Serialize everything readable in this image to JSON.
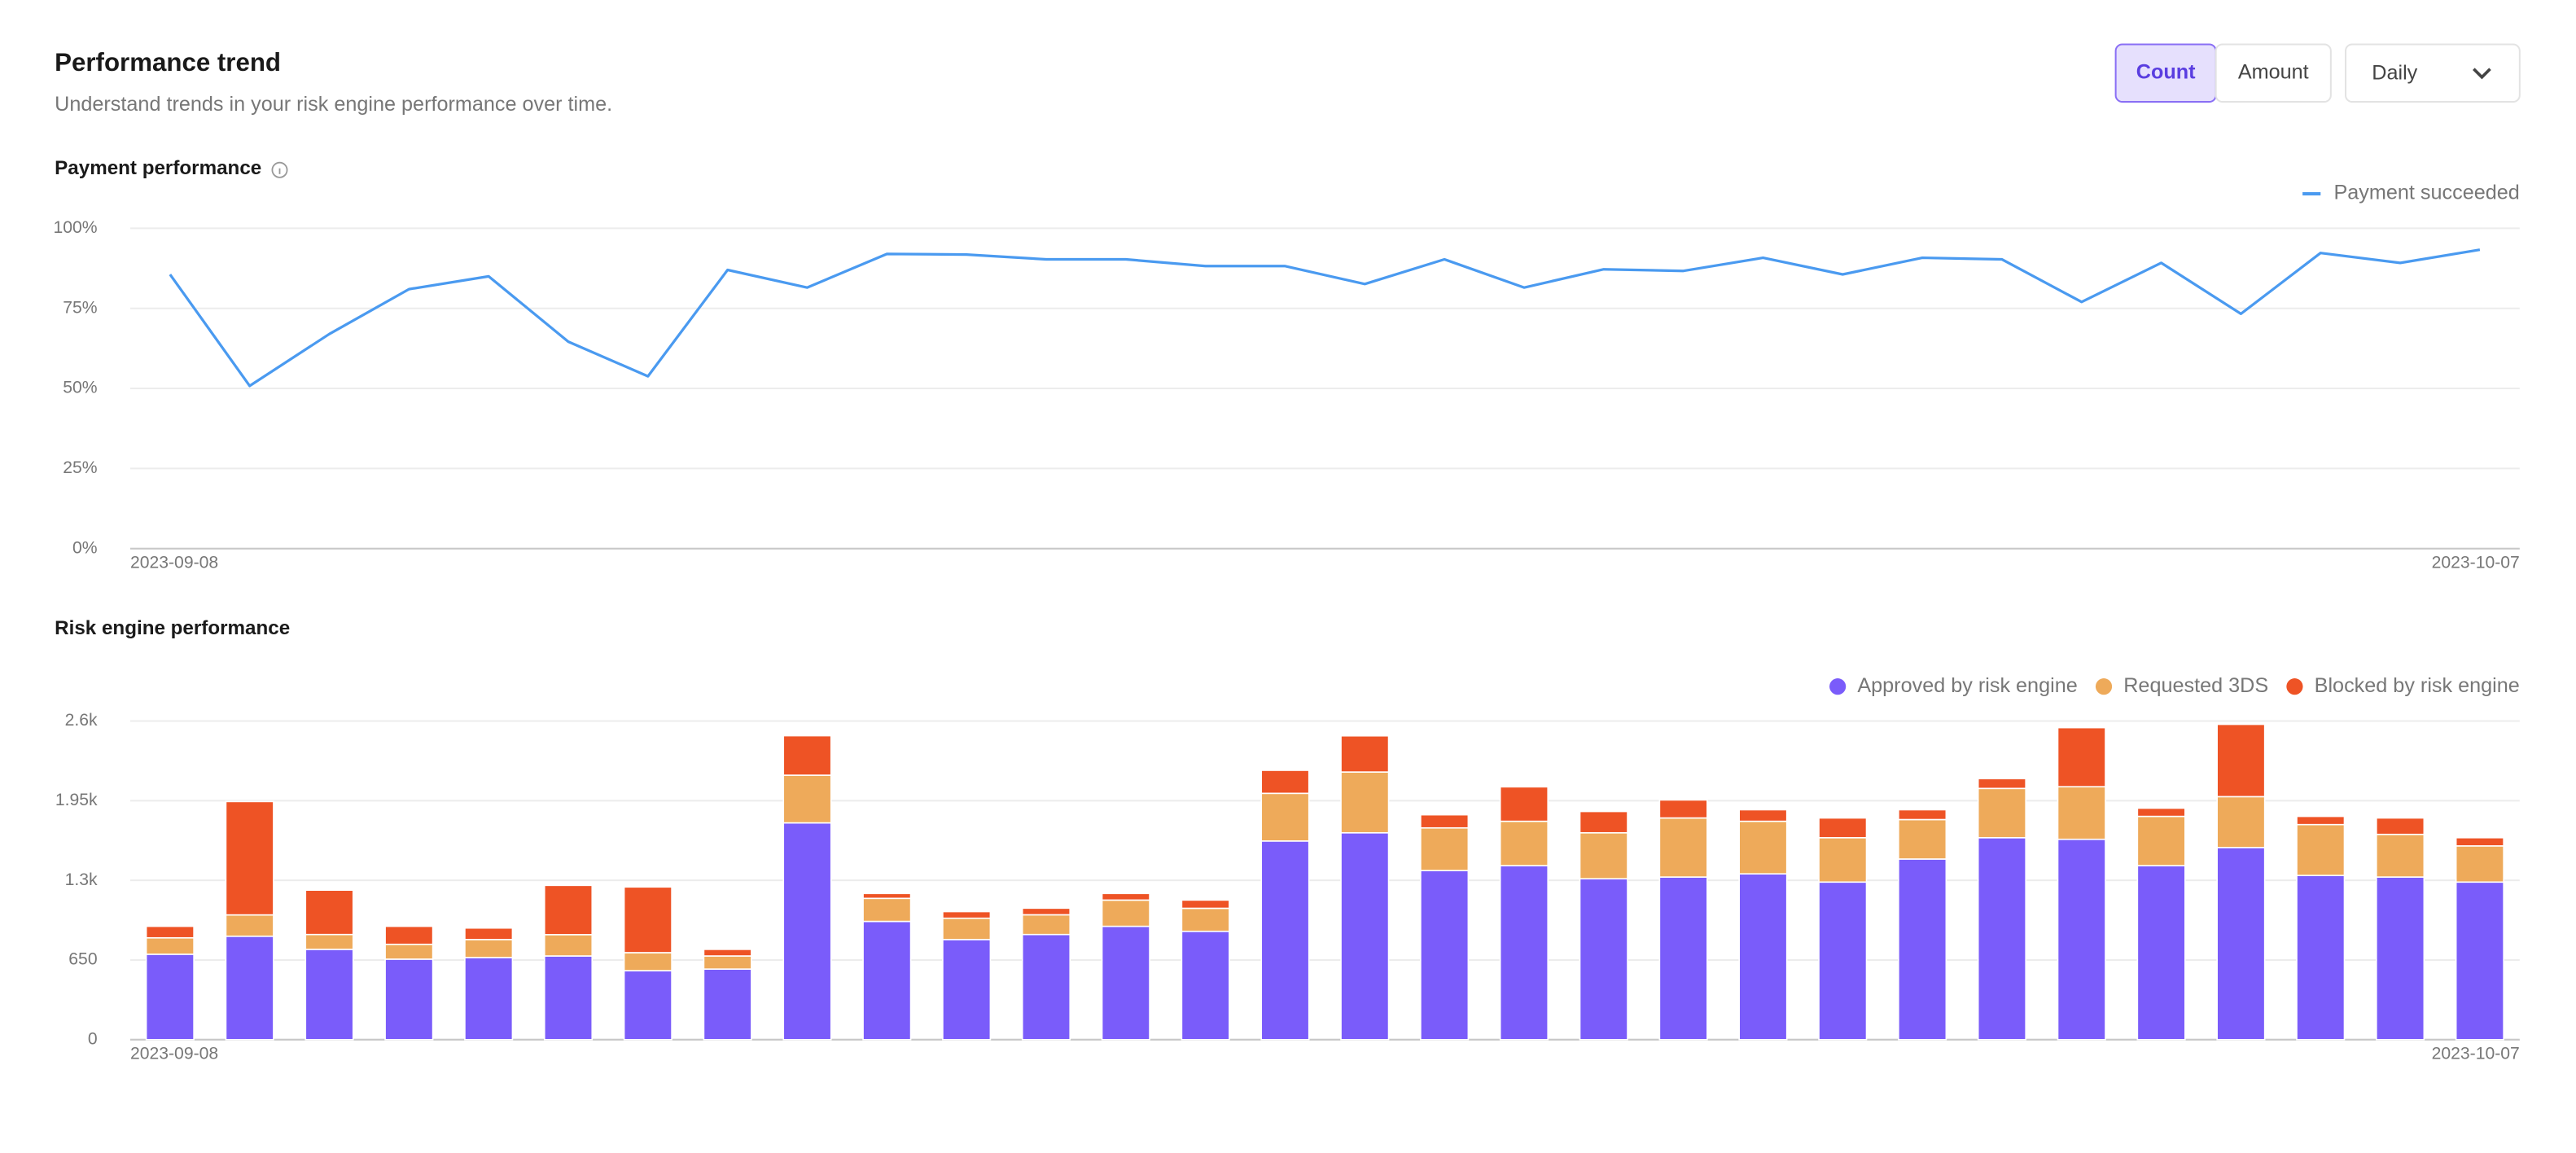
{
  "header": {
    "title": "Performance trend",
    "subtitle": "Understand trends in your risk engine performance over time.",
    "toggle": [
      "Count",
      "Amount"
    ],
    "period": "Daily"
  },
  "chart_data": [
    {
      "type": "line",
      "title": "Payment performance",
      "categories": [
        "2023-09-08",
        null,
        null,
        null,
        null,
        null,
        null,
        null,
        null,
        null,
        null,
        null,
        null,
        null,
        null,
        null,
        null,
        null,
        null,
        null,
        null,
        null,
        null,
        null,
        null,
        null,
        null,
        null,
        null,
        "2023-10-07"
      ],
      "series": [
        {
          "name": "Payment succeeded",
          "color": "#4a9af0",
          "values": [
            85.6,
            50.8,
            67,
            81,
            85,
            64.6,
            53.8,
            87,
            81.5,
            92,
            91.8,
            90.3,
            90.3,
            88.2,
            88.2,
            82.6,
            90.3,
            81.5,
            87.2,
            86.7,
            90.8,
            85.6,
            90.8,
            90.3,
            77,
            89.2,
            73.3,
            92.3,
            89.2,
            93.3
          ]
        }
      ],
      "ylim": [
        0,
        100
      ],
      "yticks": [
        {
          "value": 0,
          "label": "0%"
        },
        {
          "value": 25,
          "label": "25%"
        },
        {
          "value": 50,
          "label": "50%"
        },
        {
          "value": 75,
          "label": "75%"
        },
        {
          "value": 100,
          "label": "100%"
        }
      ],
      "grid": true,
      "legend": "top-right"
    },
    {
      "type": "bar",
      "stacked": true,
      "title": "Risk engine performance",
      "categories": [
        "2023-09-08",
        null,
        null,
        null,
        null,
        null,
        null,
        null,
        null,
        null,
        null,
        null,
        null,
        null,
        null,
        null,
        null,
        null,
        null,
        null,
        null,
        null,
        null,
        null,
        null,
        null,
        null,
        null,
        null,
        "2023-10-07"
      ],
      "series": [
        {
          "name": "Approved by risk engine",
          "color": "#7a5cfa",
          "values": [
            697,
            844,
            737,
            657,
            670,
            683,
            563,
            576,
            1769,
            965,
            817,
            858,
            925,
            884,
            1621,
            1688,
            1380,
            1420,
            1313,
            1327,
            1353,
            1286,
            1474,
            1648,
            1635,
            1420,
            1568,
            1340,
            1327,
            1286
          ]
        },
        {
          "name": "Requested 3DS",
          "color": "#eeaa5a",
          "values": [
            134,
            174,
            121,
            121,
            147,
            174,
            147,
            107,
            389,
            188,
            174,
            161,
            214,
            188,
            389,
            496,
            348,
            362,
            375,
            482,
            429,
            362,
            322,
            402,
            429,
            402,
            415,
            415,
            348,
            295
          ]
        },
        {
          "name": "Blocked by risk engine",
          "color": "#ee5325",
          "values": [
            94,
            925,
            362,
            147,
            94,
            402,
            536,
            54,
            322,
            40,
            54,
            54,
            54,
            67,
            188,
            295,
            107,
            281,
            174,
            147,
            94,
            161,
            80,
            80,
            482,
            67,
            590,
            67,
            134,
            67
          ]
        }
      ],
      "ylim": [
        0,
        2600
      ],
      "yticks": [
        0,
        650,
        {
          "value": 1300,
          "label": "1.3k"
        },
        {
          "value": 1950,
          "label": "1.95k"
        },
        {
          "value": 2600,
          "label": "2.6k"
        }
      ],
      "grid": true,
      "legend": "top-right"
    }
  ]
}
